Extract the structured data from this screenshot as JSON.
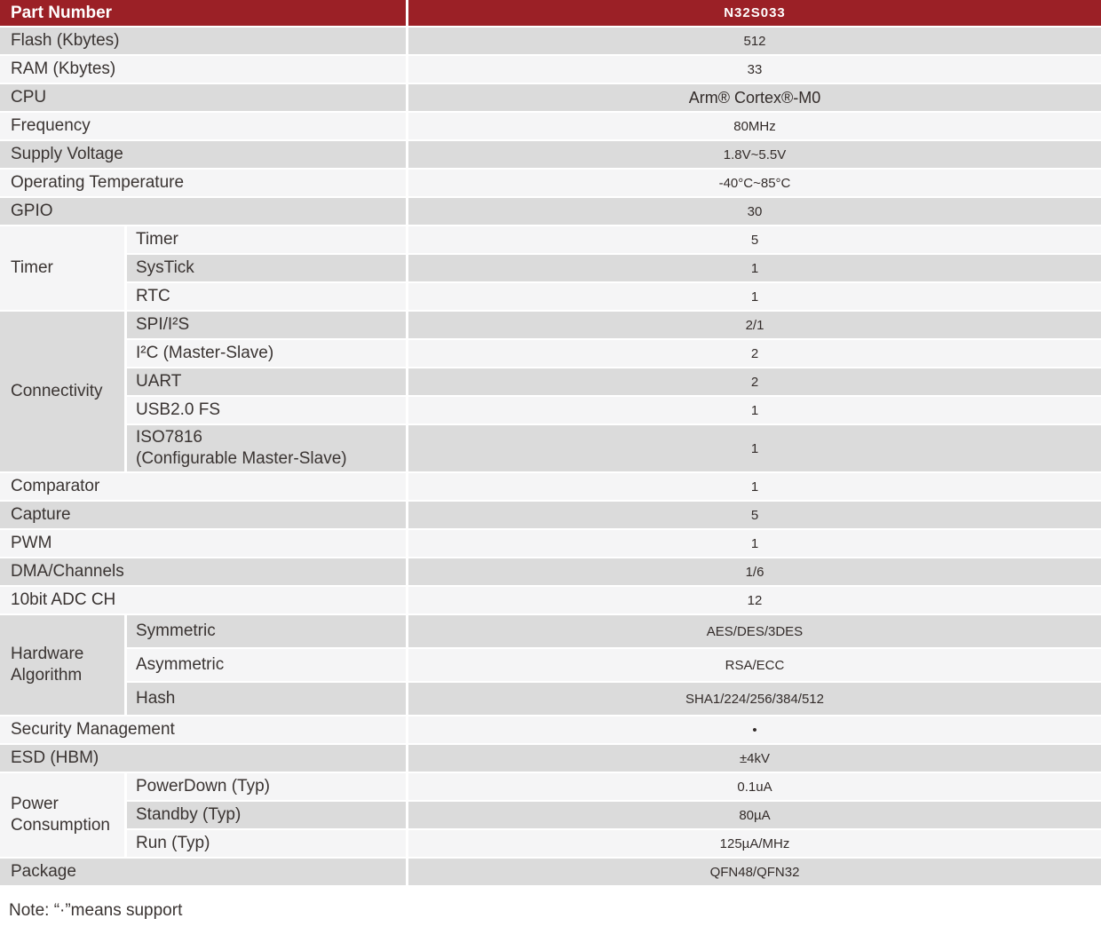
{
  "colors": {
    "header_bg": "#9b2026",
    "row_gray": "#dbdbdb",
    "row_light": "#f5f5f6",
    "text_dark": "#3a3432"
  },
  "header": {
    "col_label": "Part Number",
    "col_value": "N32S033"
  },
  "rows": {
    "flash": {
      "label": "Flash (Kbytes)",
      "value": "512"
    },
    "ram": {
      "label": "RAM (Kbytes)",
      "value": "33"
    },
    "cpu": {
      "label": "CPU",
      "value": "Arm® Cortex®-M0"
    },
    "frequency": {
      "label": "Frequency",
      "value": "80MHz"
    },
    "supply_voltage": {
      "label": "Supply Voltage",
      "value": "1.8V~5.5V"
    },
    "operating_temperature": {
      "label": "Operating Temperature",
      "value": "-40°C~85°C"
    },
    "gpio": {
      "label": "GPIO",
      "value": "30"
    },
    "comparator": {
      "label": "Comparator",
      "value": "1"
    },
    "capture": {
      "label": "Capture",
      "value": "5"
    },
    "pwm": {
      "label": "PWM",
      "value": "1"
    },
    "dma": {
      "label": "DMA/Channels",
      "value": "1/6"
    },
    "adc": {
      "label": "10bit ADC CH",
      "value": "12"
    },
    "security": {
      "label": "Security Management",
      "value": "•"
    },
    "esd": {
      "label": "ESD (HBM)",
      "value": "±4kV"
    },
    "package": {
      "label": "Package",
      "value": "QFN48/QFN32"
    }
  },
  "groups": {
    "timer": {
      "label": "Timer",
      "items": {
        "timer": {
          "label": "Timer",
          "value": "5"
        },
        "systick": {
          "label": "SysTick",
          "value": "1"
        },
        "rtc": {
          "label": "RTC",
          "value": "1"
        }
      }
    },
    "connectivity": {
      "label": "Connectivity",
      "items": {
        "spi_i2s": {
          "label": "SPI/I²S",
          "value": "2/1"
        },
        "i2c": {
          "label": "I²C (Master-Slave)",
          "value": "2"
        },
        "uart": {
          "label": "UART",
          "value": "2"
        },
        "usb": {
          "label": "USB2.0 FS",
          "value": "1"
        },
        "iso7816": {
          "label": "ISO7816\n(Configurable Master-Slave)",
          "value": "1"
        }
      }
    },
    "hardware_algorithm": {
      "label": "Hardware Algorithm",
      "items": {
        "symmetric": {
          "label": "Symmetric",
          "value": "AES/DES/3DES"
        },
        "asymmetric": {
          "label": "Asymmetric",
          "value": "RSA/ECC"
        },
        "hash": {
          "label": "Hash",
          "value": "SHA1/224/256/384/512"
        }
      }
    },
    "power_consumption": {
      "label": "Power Consumption",
      "items": {
        "powerdown": {
          "label": "PowerDown (Typ)",
          "value": "0.1uA"
        },
        "standby": {
          "label": "Standby (Typ)",
          "value": "80µA"
        },
        "run": {
          "label": "Run (Typ)",
          "value": "125µA/MHz"
        }
      }
    }
  },
  "note": "Note: “·”means support"
}
